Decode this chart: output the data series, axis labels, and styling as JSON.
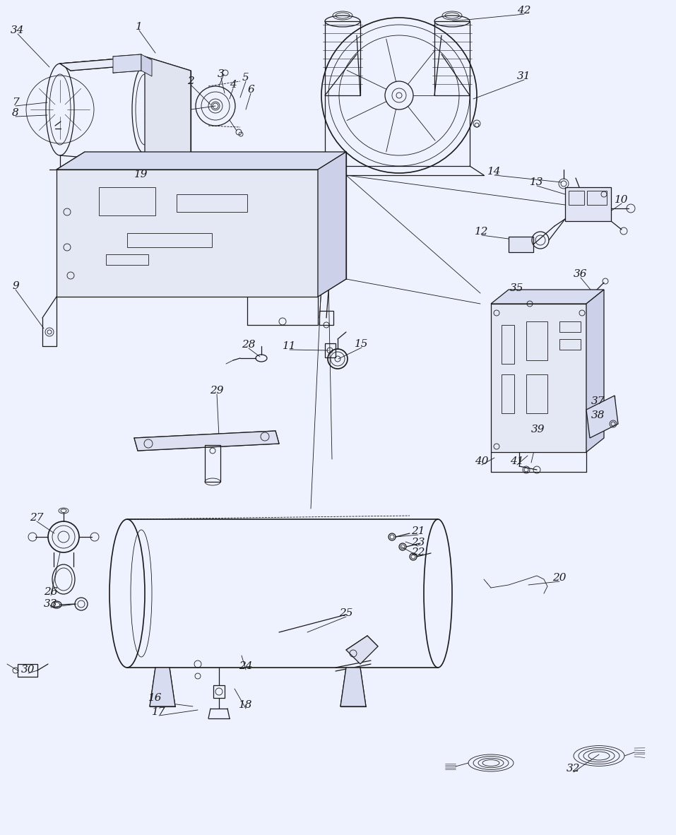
{
  "bg_color": "#eef2ff",
  "line_color": "#1a1a1a",
  "lw": 0.9,
  "fig_w": 9.57,
  "fig_h": 11.82,
  "dpi": 100
}
